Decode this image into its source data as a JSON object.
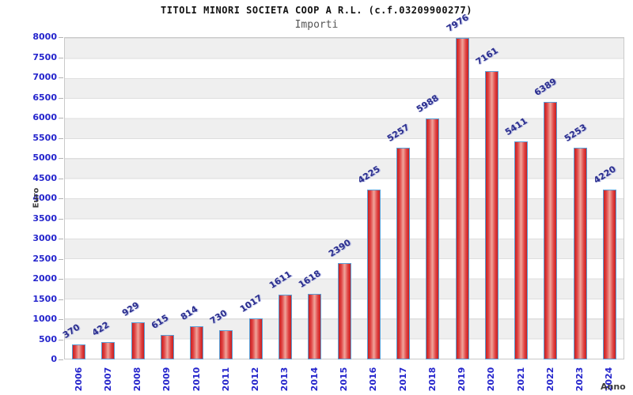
{
  "header": {
    "title": "TITOLI MINORI SOCIETA COOP A R.L. (c.f.03209900277)",
    "subtitle": "Importi"
  },
  "chart_data": {
    "type": "bar",
    "title": "TITOLI MINORI SOCIETA COOP A R.L. (c.f.03209900277)",
    "subtitle": "Importi",
    "xlabel": "Anno",
    "ylabel": "Euro",
    "categories": [
      "2006",
      "2007",
      "2008",
      "2009",
      "2010",
      "2011",
      "2012",
      "2013",
      "2014",
      "2015",
      "2016",
      "2017",
      "2018",
      "2019",
      "2020",
      "2021",
      "2022",
      "2023",
      "2024"
    ],
    "values": [
      370,
      422,
      929,
      615,
      814,
      730,
      1017,
      1611,
      1618,
      2390,
      4225,
      5257,
      5988,
      7976,
      7161,
      5411,
      6389,
      5253,
      4220
    ],
    "ylim": [
      0,
      8000
    ],
    "ytick_step": 500,
    "grid": "horizontal-bands",
    "legend": "none",
    "bar_value_labels": true,
    "colors": {
      "bar_fill_dark": "#c91f1f",
      "bar_fill_light": "#f0a59b",
      "bar_border": "#5a9fd6",
      "tick_label": "#2424cc",
      "value_label": "#2b2e8e",
      "band": "#efefef",
      "plot_border": "#c9c9c9",
      "axis_title": "#3c3c3c"
    }
  }
}
